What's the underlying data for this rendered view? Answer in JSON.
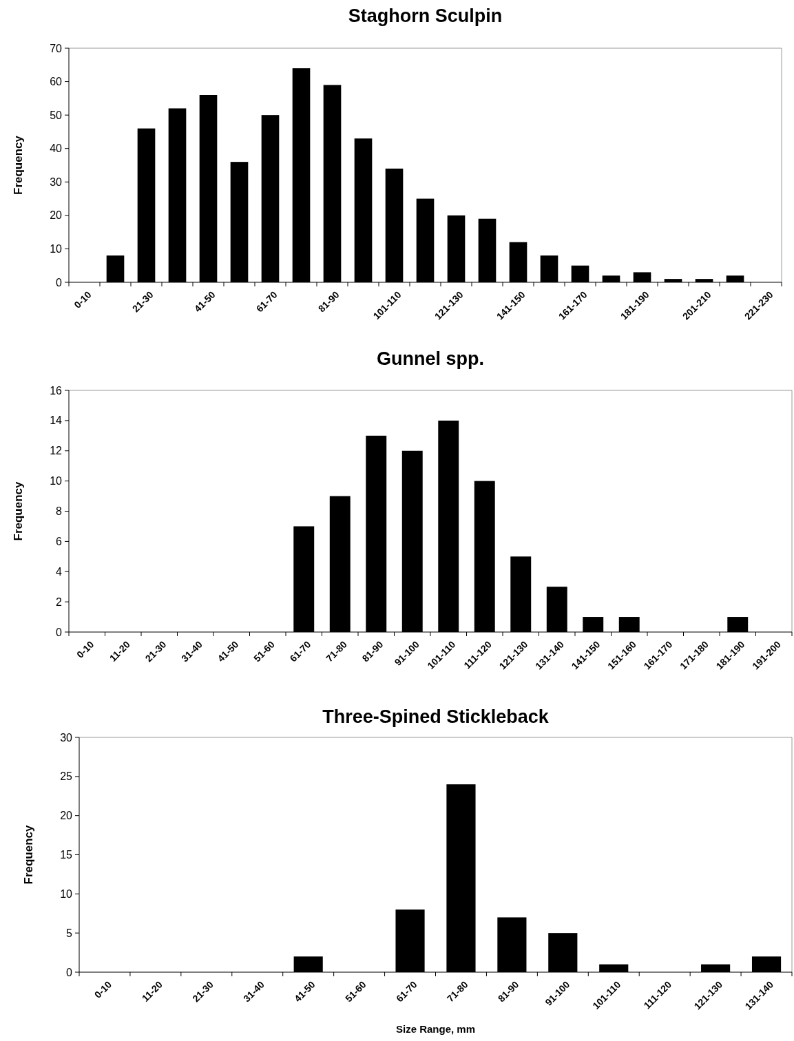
{
  "chart_data": [
    {
      "type": "bar",
      "title": "Staghorn Sculpin",
      "ylabel": "Frequency",
      "categories": [
        "0-10",
        null,
        "21-30",
        null,
        "41-50",
        null,
        "61-70",
        null,
        "81-90",
        null,
        "101-110",
        null,
        "121-130",
        null,
        "141-150",
        null,
        "161-170",
        null,
        "181-190",
        null,
        "201-210",
        null,
        "221-230"
      ],
      "values": [
        0,
        8,
        46,
        52,
        56,
        36,
        50,
        64,
        59,
        43,
        34,
        25,
        20,
        19,
        12,
        8,
        5,
        2,
        3,
        1,
        1,
        2,
        0
      ],
      "color": "#000000",
      "ylim": [
        0,
        70
      ],
      "yticks": [
        0,
        10,
        20,
        30,
        40,
        50,
        60,
        70
      ],
      "grid": false
    },
    {
      "type": "bar",
      "title": "Gunnel spp.",
      "ylabel": "Frequency",
      "categories": [
        "0-10",
        "11-20",
        "21-30",
        "31-40",
        "41-50",
        "51-60",
        "61-70",
        "71-80",
        "81-90",
        "91-100",
        "101-110",
        "111-120",
        "121-130",
        "131-140",
        "141-150",
        "151-160",
        "161-170",
        "171-180",
        "181-190",
        "191-200"
      ],
      "values": [
        0,
        0,
        0,
        0,
        0,
        0,
        7,
        9,
        13,
        12,
        14,
        10,
        5,
        3,
        1,
        1,
        0,
        0,
        1,
        0
      ],
      "color": "#000000",
      "ylim": [
        0,
        16
      ],
      "yticks": [
        0,
        2,
        4,
        6,
        8,
        10,
        12,
        14,
        16
      ],
      "grid": false
    },
    {
      "type": "bar",
      "title": "Three-Spined Stickleback",
      "xlabel": "Size Range, mm",
      "ylabel": "Frequency",
      "categories": [
        "0-10",
        "11-20",
        "21-30",
        "31-40",
        "41-50",
        "51-60",
        "61-70",
        "71-80",
        "81-90",
        "91-100",
        "101-110",
        "111-120",
        "121-130",
        "131-140"
      ],
      "values": [
        0,
        0,
        0,
        0,
        2,
        0,
        8,
        24,
        7,
        5,
        1,
        0,
        1,
        2
      ],
      "color": "#000000",
      "ylim": [
        0,
        30
      ],
      "yticks": [
        0,
        5,
        10,
        15,
        20,
        25,
        30
      ],
      "grid": false
    }
  ]
}
